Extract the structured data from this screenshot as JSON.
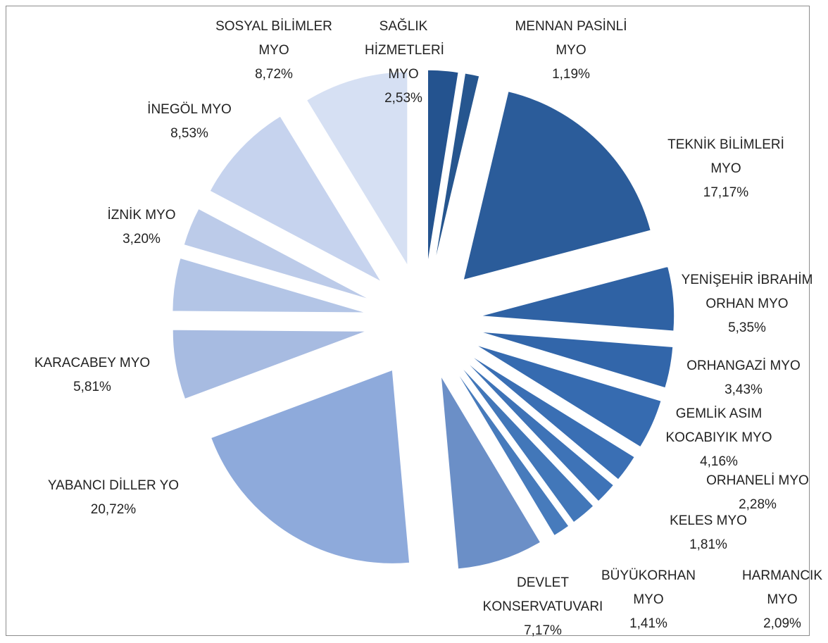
{
  "chart_data": {
    "type": "pie",
    "categories": [
      "SAĞLIK HİZMETLERİ MYO",
      "MENNAN PASİNLİ MYO",
      "TEKNİK BİLİMLERİ MYO",
      "YENİŞEHİR İBRAHİM ORHAN MYO",
      "ORHANGAZİ MYO",
      "GEMLİK ASIM KOCABIYIK MYO",
      "ORHANELİ MYO",
      "KELES MYO",
      "HARMANCIK MYO",
      "BÜYÜKORHAN MYO",
      "DEVLET KONSERVATUVARI",
      "YABANCI DİLLER YO",
      "KARACABEY MYO",
      null,
      "İZNİK MYO",
      "İNEGÖL MYO",
      "SOSYAL BİLİMLER MYO"
    ],
    "values": [
      2.53,
      1.19,
      17.17,
      5.35,
      3.43,
      4.16,
      2.28,
      1.81,
      2.09,
      1.41,
      7.17,
      20.72,
      5.81,
      4.43,
      3.2,
      8.53,
      8.72
    ],
    "value_labels": [
      "2,53%",
      "1,19%",
      "17,17%",
      "5,35%",
      "3,43%",
      "4,16%",
      "2,28%",
      "1,81%",
      "2,09%",
      "1,41%",
      "7,17%",
      "20,72%",
      "5,81%",
      null,
      "3,20%",
      "8,53%",
      "8,72%"
    ],
    "colors": [
      "#24538f",
      "#26568f",
      "#2b5c9a",
      "#2f62a4",
      "#3266aa",
      "#366bb0",
      "#3a6fb4",
      "#3e73b7",
      "#4277b9",
      "#477bbc",
      "#6b8fc7",
      "#8eaadb",
      "#a7bbe1",
      "#b3c5e6",
      "#bccbe9",
      "#c6d3ee",
      "#d6e0f3"
    ]
  }
}
